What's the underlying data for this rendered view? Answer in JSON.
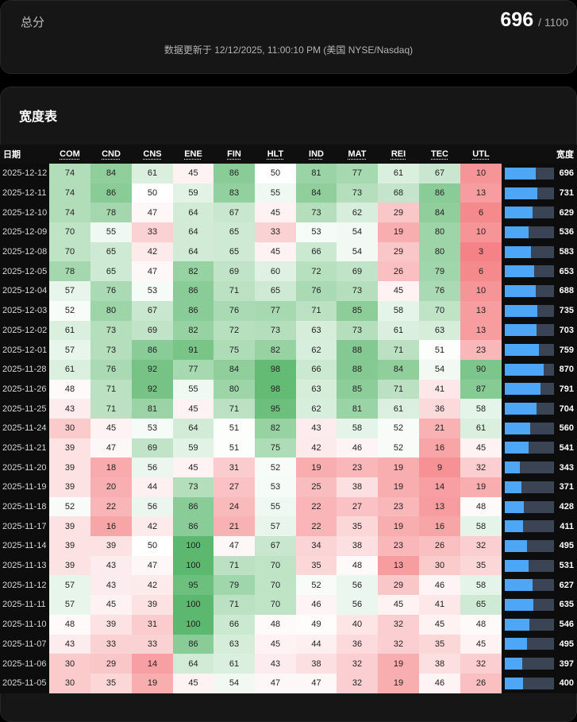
{
  "summary": {
    "label": "总分",
    "score": "696",
    "max": "/ 1100",
    "updated": "数据更新于 12/12/2025, 11:00:10 PM (美国 NYSE/Nasdaq)"
  },
  "table": {
    "title": "宽度表",
    "date_header": "日期",
    "breadth_header": "宽度",
    "max_total": 1100,
    "sectors": [
      "COM",
      "CND",
      "CNS",
      "ENE",
      "FIN",
      "HLT",
      "IND",
      "MAT",
      "REI",
      "TEC",
      "UTL"
    ],
    "rows": [
      {
        "date": "2025-12-12",
        "values": [
          74,
          84,
          61,
          45,
          86,
          50,
          81,
          77,
          61,
          67,
          10
        ],
        "total": 696
      },
      {
        "date": "2025-12-11",
        "values": [
          74,
          86,
          50,
          59,
          83,
          55,
          84,
          73,
          68,
          86,
          13
        ],
        "total": 731
      },
      {
        "date": "2025-12-10",
        "values": [
          74,
          78,
          47,
          64,
          67,
          45,
          73,
          62,
          29,
          84,
          6
        ],
        "total": 629
      },
      {
        "date": "2025-12-09",
        "values": [
          70,
          55,
          33,
          64,
          65,
          33,
          53,
          54,
          19,
          80,
          10
        ],
        "total": 536
      },
      {
        "date": "2025-12-08",
        "values": [
          70,
          65,
          42,
          64,
          65,
          45,
          66,
          54,
          29,
          80,
          3
        ],
        "total": 583
      },
      {
        "date": "2025-12-05",
        "values": [
          78,
          65,
          47,
          82,
          69,
          60,
          72,
          69,
          26,
          79,
          6
        ],
        "total": 653
      },
      {
        "date": "2025-12-04",
        "values": [
          57,
          76,
          53,
          86,
          71,
          65,
          76,
          73,
          45,
          76,
          10
        ],
        "total": 688
      },
      {
        "date": "2025-12-03",
        "values": [
          52,
          80,
          67,
          86,
          76,
          77,
          71,
          85,
          58,
          70,
          13
        ],
        "total": 735
      },
      {
        "date": "2025-12-02",
        "values": [
          61,
          73,
          69,
          82,
          72,
          73,
          63,
          73,
          61,
          63,
          13
        ],
        "total": 703
      },
      {
        "date": "2025-12-01",
        "values": [
          57,
          73,
          86,
          91,
          75,
          82,
          62,
          88,
          71,
          51,
          23
        ],
        "total": 759
      },
      {
        "date": "2025-11-28",
        "values": [
          61,
          76,
          92,
          77,
          84,
          98,
          66,
          88,
          84,
          54,
          90
        ],
        "total": 870
      },
      {
        "date": "2025-11-26",
        "values": [
          48,
          71,
          92,
          55,
          80,
          98,
          63,
          85,
          71,
          41,
          87
        ],
        "total": 791
      },
      {
        "date": "2025-11-25",
        "values": [
          43,
          71,
          81,
          45,
          71,
          95,
          62,
          81,
          61,
          36,
          58
        ],
        "total": 704
      },
      {
        "date": "2025-11-24",
        "values": [
          30,
          45,
          53,
          64,
          51,
          82,
          43,
          58,
          52,
          21,
          61
        ],
        "total": 560
      },
      {
        "date": "2025-11-21",
        "values": [
          39,
          47,
          69,
          59,
          51,
          75,
          42,
          46,
          52,
          16,
          45
        ],
        "total": 541
      },
      {
        "date": "2025-11-20",
        "values": [
          39,
          18,
          56,
          45,
          31,
          52,
          19,
          23,
          19,
          9,
          32
        ],
        "total": 343
      },
      {
        "date": "2025-11-19",
        "values": [
          39,
          20,
          44,
          73,
          27,
          53,
          25,
          38,
          19,
          14,
          19
        ],
        "total": 371
      },
      {
        "date": "2025-11-18",
        "values": [
          52,
          22,
          56,
          86,
          24,
          55,
          22,
          27,
          23,
          13,
          48
        ],
        "total": 428
      },
      {
        "date": "2025-11-17",
        "values": [
          39,
          16,
          42,
          86,
          21,
          57,
          22,
          35,
          19,
          16,
          58
        ],
        "total": 411
      },
      {
        "date": "2025-11-14",
        "values": [
          39,
          39,
          50,
          100,
          47,
          67,
          34,
          38,
          23,
          26,
          32
        ],
        "total": 495
      },
      {
        "date": "2025-11-13",
        "values": [
          39,
          43,
          47,
          100,
          71,
          70,
          35,
          48,
          13,
          30,
          35
        ],
        "total": 531
      },
      {
        "date": "2025-11-12",
        "values": [
          57,
          43,
          42,
          95,
          79,
          70,
          52,
          56,
          29,
          46,
          58
        ],
        "total": 627
      },
      {
        "date": "2025-11-11",
        "values": [
          57,
          45,
          39,
          100,
          71,
          70,
          46,
          56,
          45,
          41,
          65
        ],
        "total": 635
      },
      {
        "date": "2025-11-10",
        "values": [
          48,
          39,
          31,
          100,
          66,
          48,
          49,
          40,
          32,
          45,
          48
        ],
        "total": 546
      },
      {
        "date": "2025-11-07",
        "values": [
          43,
          33,
          33,
          86,
          63,
          45,
          44,
          36,
          32,
          35,
          45
        ],
        "total": 495
      },
      {
        "date": "2025-11-06",
        "values": [
          30,
          29,
          14,
          64,
          61,
          43,
          38,
          32,
          19,
          38,
          32
        ],
        "total": 397
      },
      {
        "date": "2025-11-05",
        "values": [
          30,
          35,
          19,
          45,
          54,
          47,
          47,
          32,
          19,
          46,
          26
        ],
        "total": 400
      }
    ]
  },
  "colors": {
    "low": "#f47a7e",
    "mid": "#ffffff",
    "high": "#5cb86e",
    "bar_fill": "#4ea6f7",
    "bar_track": "#3a4454"
  }
}
